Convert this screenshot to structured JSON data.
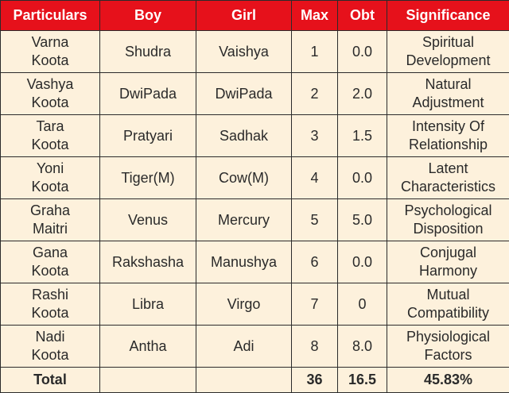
{
  "headers": [
    "Particulars",
    "Boy",
    "Girl",
    "Max",
    "Obt",
    "Significance"
  ],
  "rows": [
    {
      "particular": [
        "Varna",
        "Koota"
      ],
      "boy": "Shudra",
      "girl": "Vaishya",
      "max": "1",
      "obt": "0.0",
      "significance": [
        "Spiritual",
        "Development"
      ]
    },
    {
      "particular": [
        "Vashya",
        "Koota"
      ],
      "boy": "DwiPada",
      "girl": "DwiPada",
      "max": "2",
      "obt": "2.0",
      "significance": [
        "Natural",
        "Adjustment"
      ]
    },
    {
      "particular": [
        "Tara",
        "Koota"
      ],
      "boy": "Pratyari",
      "girl": "Sadhak",
      "max": "3",
      "obt": "1.5",
      "significance": [
        "Intensity Of",
        "Relationship"
      ]
    },
    {
      "particular": [
        "Yoni",
        "Koota"
      ],
      "boy": "Tiger(M)",
      "girl": "Cow(M)",
      "max": "4",
      "obt": "0.0",
      "significance": [
        "Latent",
        "Characteristics"
      ]
    },
    {
      "particular": [
        "Graha",
        "Maitri"
      ],
      "boy": "Venus",
      "girl": "Mercury",
      "max": "5",
      "obt": "5.0",
      "significance": [
        "Psychological",
        "Disposition"
      ]
    },
    {
      "particular": [
        "Gana",
        "Koota"
      ],
      "boy": "Rakshasha",
      "girl": "Manushya",
      "max": "6",
      "obt": "0.0",
      "significance": [
        "Conjugal",
        "Harmony"
      ]
    },
    {
      "particular": [
        "Rashi",
        "Koota"
      ],
      "boy": "Libra",
      "girl": "Virgo",
      "max": "7",
      "obt": "0",
      "significance": [
        "Mutual",
        "Compatibility"
      ]
    },
    {
      "particular": [
        "Nadi",
        "Koota"
      ],
      "boy": "Antha",
      "girl": "Adi",
      "max": "8",
      "obt": "8.0",
      "significance": [
        "Physiological",
        "Factors"
      ]
    }
  ],
  "total": {
    "label": "Total",
    "boy": "",
    "girl": "",
    "max": "36",
    "obt": "16.5",
    "significance": "45.83%"
  },
  "colors": {
    "header_bg": "#e6111b",
    "header_text": "#ffffff",
    "cell_bg": "#fdf1dc",
    "border": "#2b2b2b"
  }
}
